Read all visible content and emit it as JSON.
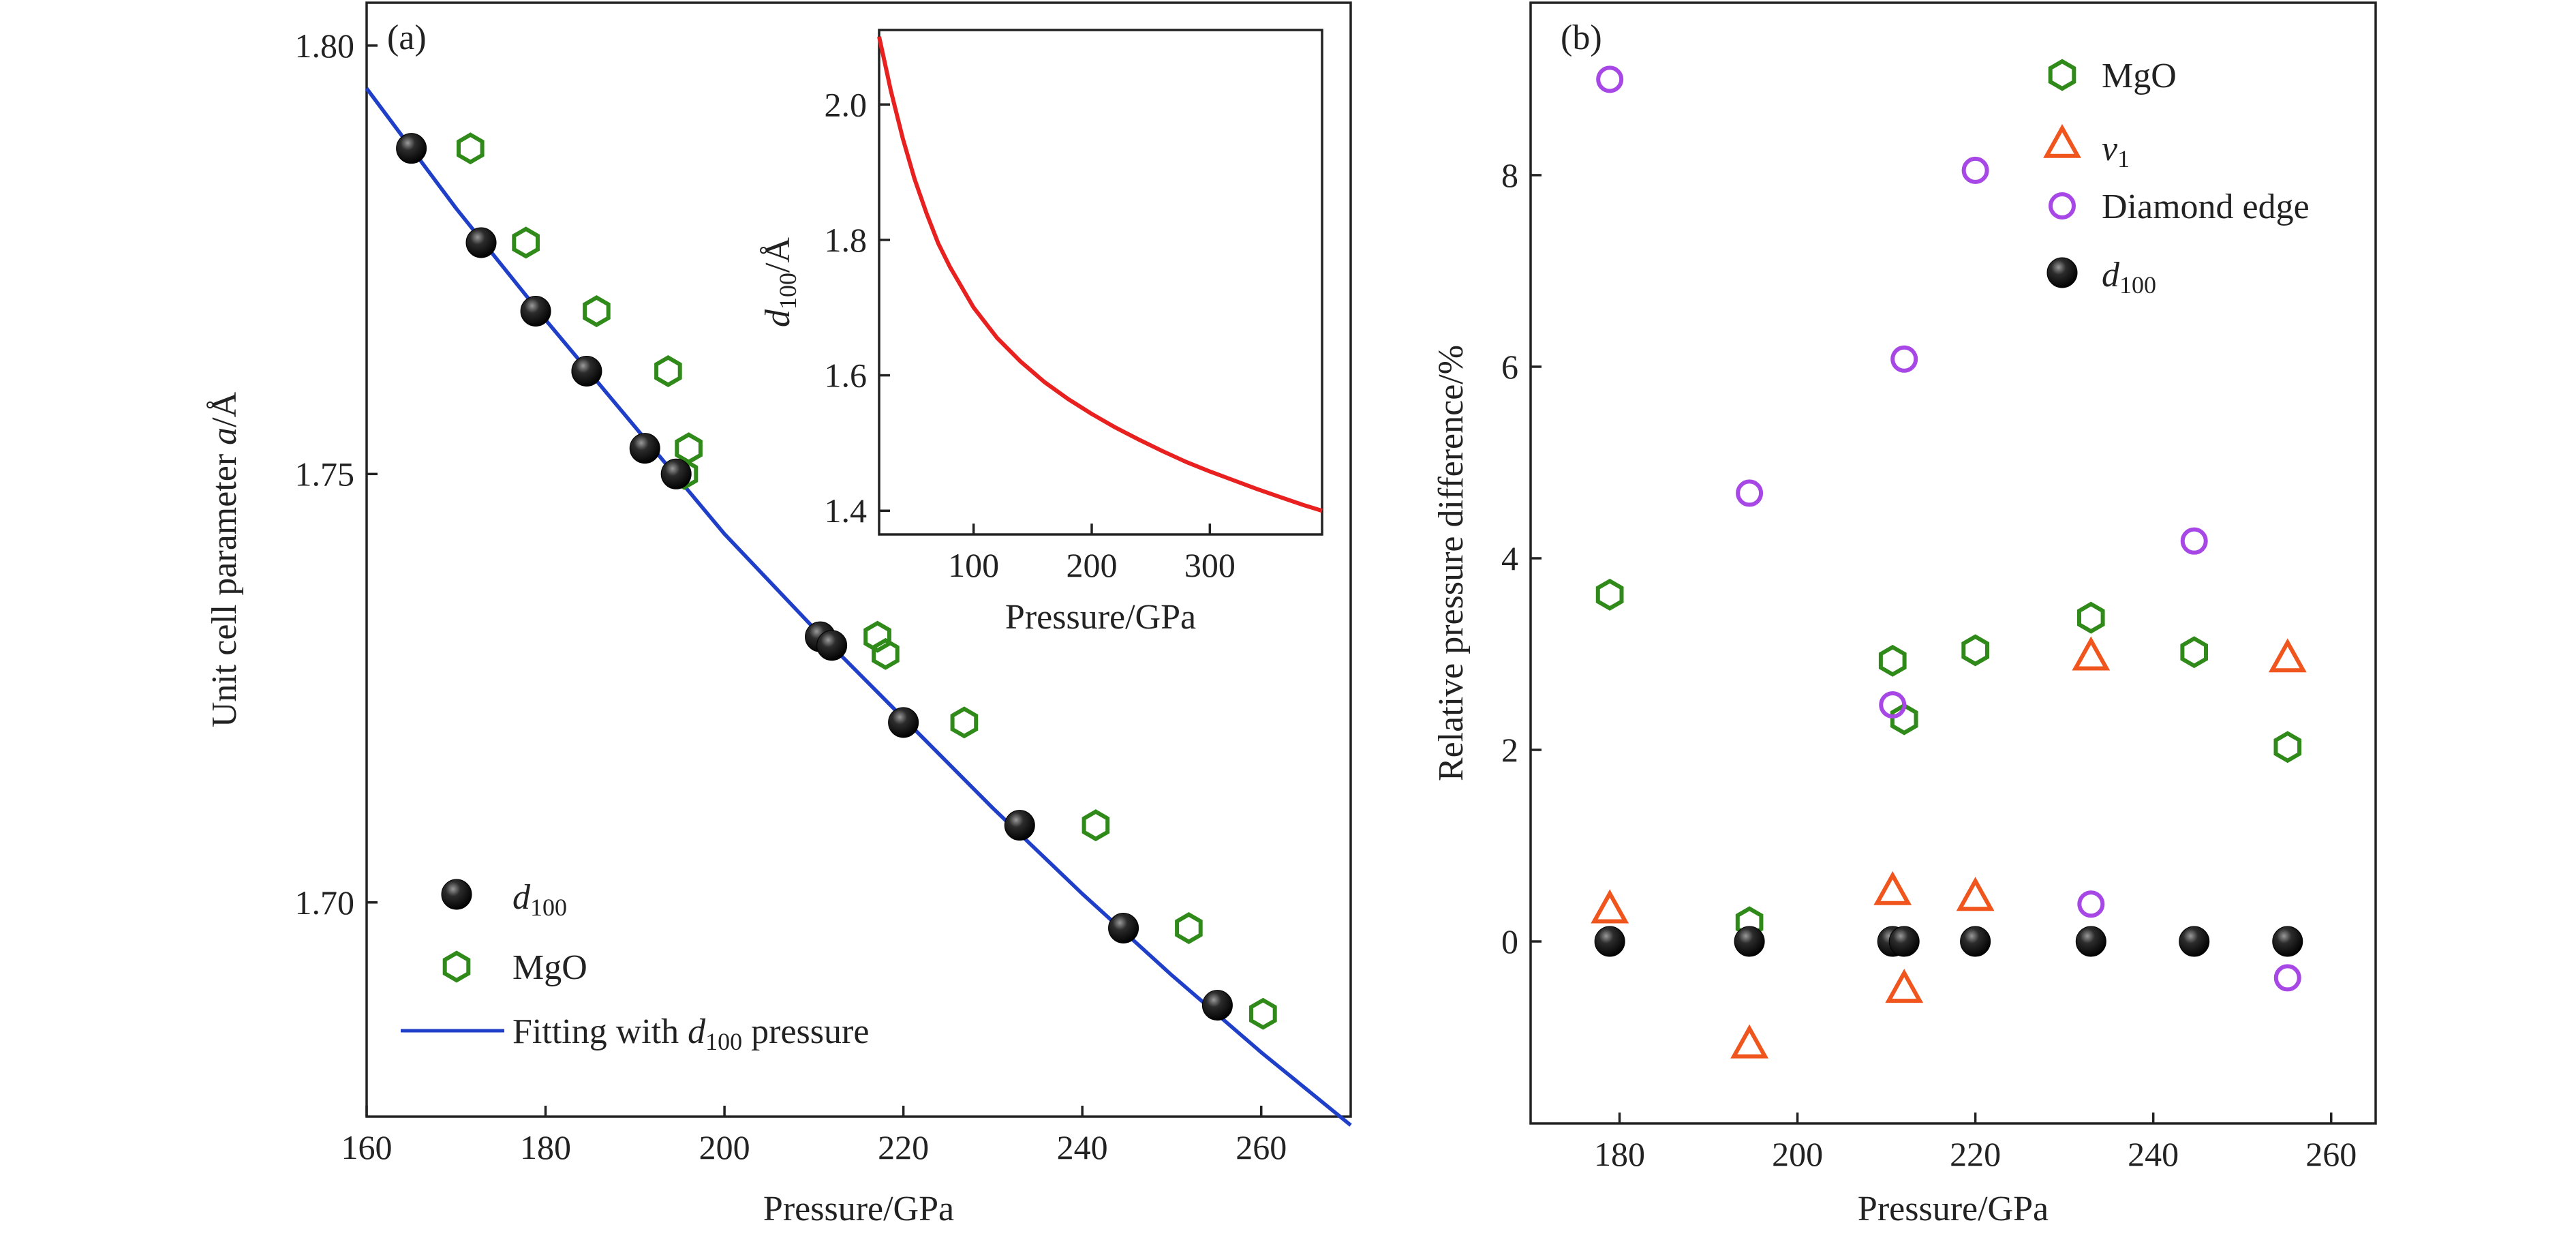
{
  "colors": {
    "d100": "#111111",
    "mgo": "#2f8a1a",
    "nu1": "#f0551e",
    "diamond": "#a747e6",
    "fit": "#1f3fc8",
    "inset_curve": "#e8201f",
    "axis": "#222222"
  },
  "chart_data": [
    {
      "type": "scatter",
      "panel_label": "(a)",
      "xlabel": "Pressure/GPa",
      "ylabel": "Unit cell parameter a/Å",
      "ylabel_parts": {
        "before": "Unit cell parameter ",
        "italic": "a",
        "after": "/Å"
      },
      "xlim": [
        160,
        270
      ],
      "ylim": [
        1.675,
        1.805
      ],
      "xticks": [
        160,
        180,
        200,
        220,
        240,
        260
      ],
      "yticks": [
        1.7,
        1.75,
        1.8
      ],
      "ytick_labels": [
        "1.70",
        "1.75",
        "1.80"
      ],
      "grid": false,
      "legend_position": "bottom-left",
      "legend": {
        "d100": {
          "italic": "d",
          "sub": "100"
        },
        "mgo": "MgO",
        "fit": {
          "before": "Fitting with ",
          "italic": "d",
          "sub": "100",
          "after": " pressure"
        }
      },
      "series": [
        {
          "key": "d100",
          "marker": "sphere",
          "x": [
            165.0,
            172.8,
            178.9,
            184.6,
            191.1,
            194.6,
            210.7,
            212.0,
            220.0,
            233.0,
            244.6,
            255.1
          ],
          "y": [
            1.788,
            1.777,
            1.769,
            1.762,
            1.753,
            1.75,
            1.731,
            1.73,
            1.721,
            1.709,
            1.697,
            1.688
          ]
        },
        {
          "key": "mgo",
          "marker": "hexagon",
          "x": [
            171.6,
            177.8,
            185.7,
            193.7,
            195.5,
            196.0,
            217.1,
            218.0,
            226.8,
            241.5,
            251.9,
            260.2
          ],
          "y": [
            1.788,
            1.777,
            1.769,
            1.762,
            1.75,
            1.753,
            1.731,
            1.729,
            1.721,
            1.709,
            1.697,
            1.687
          ]
        },
        {
          "key": "fit",
          "marker": "line",
          "x": [
            160,
            170,
            180,
            190,
            200,
            210,
            220,
            230,
            240,
            250,
            260,
            270
          ],
          "y": [
            1.795,
            1.781,
            1.768,
            1.7555,
            1.743,
            1.732,
            1.7215,
            1.711,
            1.701,
            1.6915,
            1.6825,
            1.674
          ]
        }
      ],
      "inset": {
        "type": "line",
        "xlabel": "Pressure/GPa",
        "ylabel": {
          "italic": "d",
          "sub": "100",
          "after": "/Å"
        },
        "xlim": [
          20,
          395
        ],
        "ylim": [
          1.365,
          2.11
        ],
        "xticks": [
          100,
          200,
          300
        ],
        "yticks": [
          1.4,
          1.6,
          1.8,
          2.0
        ],
        "ytick_labels": [
          "1.4",
          "1.6",
          "1.8",
          "2.0"
        ],
        "series": [
          {
            "key": "inset_curve",
            "x": [
              20,
              25,
              30,
              40,
              50,
              60,
              70,
              80,
              100,
              120,
              140,
              160,
              180,
              200,
              220,
              240,
              260,
              280,
              300,
              320,
              340,
              360,
              380,
              395
            ],
            "y": [
              2.1,
              2.06,
              2.02,
              1.95,
              1.89,
              1.84,
              1.795,
              1.76,
              1.7,
              1.655,
              1.62,
              1.59,
              1.565,
              1.543,
              1.523,
              1.505,
              1.488,
              1.472,
              1.458,
              1.445,
              1.432,
              1.42,
              1.408,
              1.4
            ]
          }
        ]
      }
    },
    {
      "type": "scatter",
      "panel_label": "(b)",
      "xlabel": "Pressure/GPa",
      "ylabel": "Relative pressure difference/%",
      "xlim": [
        170,
        265
      ],
      "ylim": [
        -1.9,
        9.8
      ],
      "xticks": [
        180,
        200,
        220,
        240,
        260
      ],
      "yticks": [
        0,
        2,
        4,
        6,
        8
      ],
      "ytick_labels": [
        "0",
        "2",
        "4",
        "6",
        "8"
      ],
      "grid": false,
      "legend_position": "top-right",
      "legend": {
        "mgo": "MgO",
        "nu1": {
          "italic": "ν",
          "sub": "1"
        },
        "diamond": "Diamond edge",
        "d100": {
          "italic": "d",
          "sub": "100"
        }
      },
      "series": [
        {
          "key": "mgo",
          "marker": "hexagon",
          "x": [
            178.9,
            194.6,
            210.7,
            212.0,
            220.0,
            233.0,
            244.6,
            255.1
          ],
          "y": [
            3.62,
            0.2,
            2.93,
            2.32,
            3.04,
            3.38,
            3.02,
            2.03
          ]
        },
        {
          "key": "nu1",
          "marker": "triangle",
          "x": [
            178.9,
            194.6,
            210.7,
            212.0,
            220.0,
            233.0,
            255.1
          ],
          "y": [
            0.33,
            -1.08,
            0.52,
            -0.5,
            0.46,
            2.97,
            2.95
          ]
        },
        {
          "key": "diamond",
          "marker": "circle",
          "x": [
            178.9,
            194.6,
            210.7,
            212.0,
            220.0,
            233.0,
            244.6,
            255.1
          ],
          "y": [
            9.0,
            4.68,
            2.47,
            6.08,
            8.05,
            0.39,
            4.18,
            -0.38
          ]
        },
        {
          "key": "d100",
          "marker": "sphere",
          "x": [
            178.9,
            194.6,
            210.7,
            212.0,
            220.0,
            233.0,
            244.6,
            255.1
          ],
          "y": [
            0,
            0,
            0,
            0,
            0,
            0,
            0,
            0
          ]
        }
      ]
    }
  ]
}
